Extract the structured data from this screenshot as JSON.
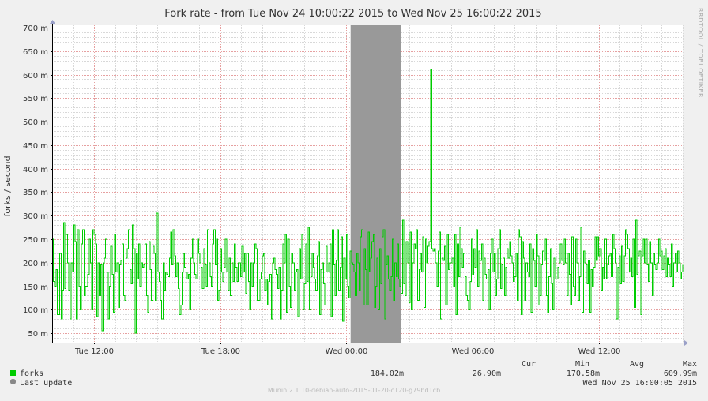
{
  "chart_data": {
    "type": "line",
    "title": "Fork rate - from Tue Nov 24 10:00:22 2015 to Wed Nov 25 16:00:22 2015",
    "ylabel": "forks / second",
    "watermark": "RRDTOOL / TOBI OETIKER",
    "ylim": [
      30,
      705
    ],
    "y_ticks": [
      {
        "v": 50,
        "label": "50 m"
      },
      {
        "v": 100,
        "label": "100 m"
      },
      {
        "v": 150,
        "label": "150 m"
      },
      {
        "v": 200,
        "label": "200 m"
      },
      {
        "v": 250,
        "label": "250 m"
      },
      {
        "v": 300,
        "label": "300 m"
      },
      {
        "v": 350,
        "label": "350 m"
      },
      {
        "v": 400,
        "label": "400 m"
      },
      {
        "v": 450,
        "label": "450 m"
      },
      {
        "v": 500,
        "label": "500 m"
      },
      {
        "v": 550,
        "label": "550 m"
      },
      {
        "v": 600,
        "label": "600 m"
      },
      {
        "v": 650,
        "label": "650 m"
      },
      {
        "v": 700,
        "label": "700 m"
      }
    ],
    "xlim": [
      0,
      30
    ],
    "x_ticks": [
      {
        "v": 2,
        "label": "Tue 12:00"
      },
      {
        "v": 8,
        "label": "Tue 18:00"
      },
      {
        "v": 14,
        "label": "Wed 00:00"
      },
      {
        "v": 20,
        "label": "Wed 06:00"
      },
      {
        "v": 26,
        "label": "Wed 12:00"
      }
    ],
    "gap_region": [
      14.2,
      16.6
    ],
    "gap_color": "#999999",
    "series": [
      {
        "name": "forks",
        "color": "#00cc00",
        "values": [
          250,
          160,
          150,
          185,
          90,
          90,
          220,
          80,
          140,
          285,
          145,
          260,
          200,
          140,
          80,
          200,
          180,
          280,
          245,
          80,
          270,
          150,
          100,
          240,
          270,
          130,
          150,
          150,
          175,
          250,
          200,
          100,
          270,
          260,
          240,
          85,
          200,
          130,
          195,
          55,
          200,
          210,
          250,
          180,
          80,
          150,
          235,
          175,
          95,
          260,
          180,
          200,
          105,
          195,
          205,
          240,
          130,
          120,
          210,
          230,
          270,
          185,
          155,
          280,
          230,
          50,
          220,
          165,
          240,
          150,
          200,
          190,
          195,
          240,
          130,
          95,
          245,
          185,
          120,
          235,
          220,
          120,
          305,
          180,
          160,
          120,
          80,
          200,
          140,
          180,
          175,
          170,
          210,
          265,
          195,
          270,
          215,
          170,
          200,
          145,
          90,
          110,
          180,
          220,
          190,
          180,
          165,
          175,
          100,
          210,
          250,
          200,
          175,
          165,
          250,
          220,
          200,
          190,
          145,
          230,
          195,
          150,
          270,
          200,
          170,
          150,
          240,
          270,
          195,
          250,
          120,
          140,
          230,
          180,
          160,
          190,
          250,
          180,
          140,
          210,
          130,
          200,
          160,
          240,
          190,
          160,
          200,
          200,
          170,
          235,
          180,
          220,
          135,
          220,
          160,
          100,
          200,
          150,
          200,
          240,
          230,
          120,
          120,
          165,
          180,
          215,
          220,
          140,
          165,
          110,
          160,
          175,
          80,
          200,
          210,
          185,
          175,
          145,
          190,
          80,
          140,
          240,
          200,
          260,
          95,
          250,
          150,
          105,
          220,
          200,
          140,
          180,
          185,
          85,
          230,
          165,
          260,
          100,
          155,
          240,
          160,
          275,
          100,
          170,
          220,
          190,
          165,
          140,
          215,
          245,
          90,
          185,
          200,
          155,
          110,
          235,
          180,
          200,
          240,
          85,
          270,
          195,
          130,
          205,
          270,
          140,
          190,
          255,
          75,
          210,
          165,
          260,
          150,
          125,
          225,
          200,
          195,
          180,
          130,
          220,
          200,
          140,
          255,
          270,
          110,
          230,
          185,
          110,
          265,
          180,
          210,
          245,
          260,
          105,
          150,
          210,
          100,
          230,
          155,
          255,
          270,
          80,
          195,
          215,
          165,
          140,
          170,
          250,
          120,
          200,
          170,
          240,
          165,
          150,
          135,
          290,
          155,
          130,
          245,
          200,
          115,
          265,
          100,
          200,
          240,
          230,
          270,
          120,
          185,
          220,
          180,
          255,
          105,
          250,
          200,
          235,
          245,
          610,
          230,
          225,
          230,
          200,
          150,
          225,
          265,
          80,
          210,
          205,
          235,
          110,
          260,
          185,
          200,
          200,
          210,
          150,
          260,
          90,
          240,
          170,
          275,
          230,
          190,
          220,
          170,
          130,
          120,
          100,
          160,
          250,
          175,
          230,
          190,
          270,
          150,
          225,
          205,
          240,
          120,
          210,
          175,
          165,
          185,
          100,
          220,
          250,
          180,
          220,
          130,
          165,
          230,
          270,
          145,
          195,
          210,
          130,
          190,
          230,
          210,
          245,
          215,
          200,
          160,
          170,
          220,
          120,
          270,
          255,
          90,
          245,
          210,
          120,
          200,
          180,
          170,
          240,
          95,
          230,
          205,
          150,
          260,
          215,
          110,
          130,
          195,
          225,
          205,
          250,
          130,
          95,
          170,
          230,
          155,
          100,
          210,
          165,
          165,
          190,
          200,
          240,
          205,
          195,
          250,
          200,
          130,
          220,
          175,
          110,
          255,
          150,
          130,
          250,
          200,
          120,
          170,
          275,
          95,
          225,
          200,
          195,
          155,
          205,
          95,
          185,
          150,
          190,
          255,
          205,
          255,
          215,
          230,
          140,
          190,
          165,
          250,
          165,
          195,
          215,
          220,
          170,
          260,
          230,
          200,
          80,
          190,
          215,
          155,
          235,
          160,
          215,
          270,
          260,
          230,
          180,
          210,
          170,
          250,
          105,
          290,
          175,
          215,
          225,
          90,
          215,
          250,
          200,
          250,
          195,
          160,
          245,
          200,
          130,
          220,
          195,
          185,
          200,
          250,
          215,
          225,
          185,
          215,
          230,
          170,
          210,
          195,
          170,
          240,
          150,
          200,
          220,
          180,
          225,
          200,
          165,
          180,
          195
        ]
      }
    ],
    "legend": {
      "headers": [
        "Cur",
        "Min",
        "Avg",
        "Max"
      ],
      "rows": [
        {
          "name": "forks",
          "color": "#00cc00",
          "cur": "184.02m",
          "min": "26.90m",
          "avg": "170.58m",
          "max": "609.99m"
        }
      ],
      "last_update_label": "Last update",
      "last_update_color": "#888888",
      "last_update_value": "Wed Nov 25 16:00:05 2015"
    },
    "footer": "Munin 2.1.10-debian-auto-2015-01-20-c120-g79bd1cb",
    "grid": true,
    "colors": {
      "background": "#f0f0f0",
      "plot_bg": "#ffffff",
      "major_grid": "#e6a0a0",
      "minor_grid": "#d8d8d8",
      "axis": "#000000"
    }
  }
}
